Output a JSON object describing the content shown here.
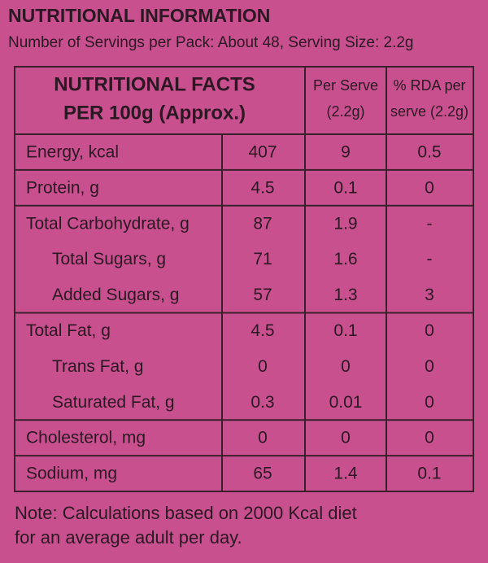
{
  "header": {
    "title": "NUTRITIONAL INFORMATION",
    "subtitle": "Number of Servings per Pack: About 48, Serving Size: 2.2g"
  },
  "table": {
    "columns": [
      [
        "NUTRITIONAL FACTS",
        "PER 100g (Approx.)"
      ],
      [
        "Per Serve",
        "(2.2g)"
      ],
      [
        "% RDA per",
        "serve (2.2g)"
      ]
    ],
    "groups": [
      [
        [
          "Energy, kcal",
          "407",
          "9",
          "0.5"
        ]
      ],
      [
        [
          "Protein, g",
          "4.5",
          "0.1",
          "0"
        ]
      ],
      [
        [
          "Total Carbohydrate, g",
          "87",
          "1.9",
          "-"
        ],
        [
          "Total Sugars, g",
          "71",
          "1.6",
          "-"
        ],
        [
          "Added Sugars, g",
          "57",
          "1.3",
          "3"
        ]
      ],
      [
        [
          "Total Fat, g",
          "4.5",
          "0.1",
          "0"
        ],
        [
          "Trans Fat, g",
          "0",
          "0",
          "0"
        ],
        [
          "Saturated Fat, g",
          "0.3",
          "0.01",
          "0"
        ]
      ],
      [
        [
          "Cholesterol, mg",
          "0",
          "0",
          "0"
        ]
      ],
      [
        [
          "Sodium, mg",
          "65",
          "1.4",
          "0.1"
        ]
      ]
    ]
  },
  "note": [
    "Note: Calculations based on 2000 Kcal diet",
    "for an average adult per day."
  ]
}
